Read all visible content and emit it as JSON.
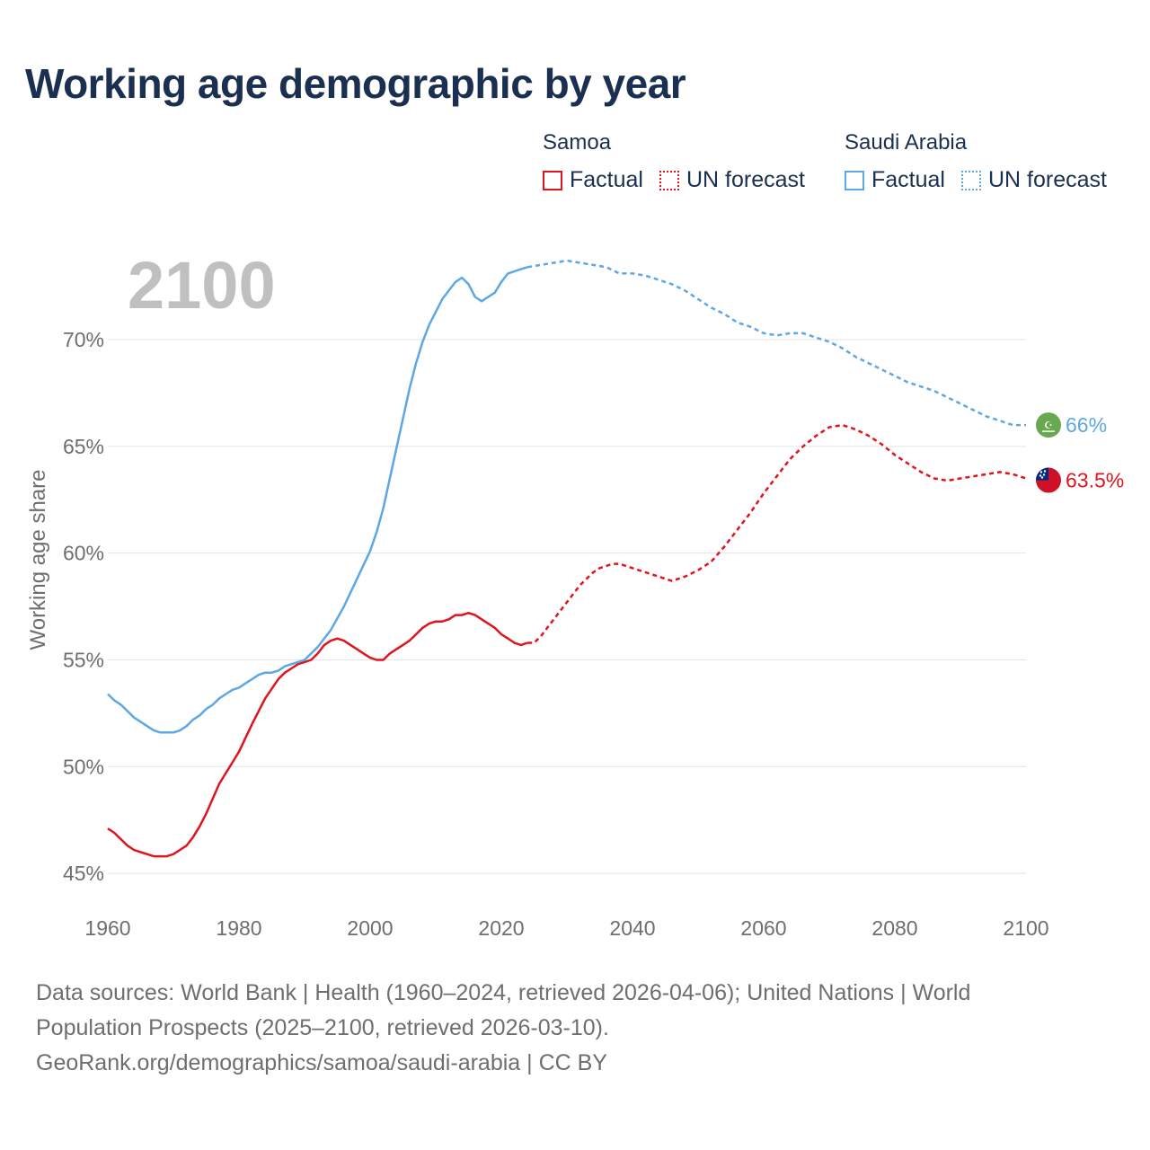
{
  "title": "Working age demographic by year",
  "legend": {
    "groups": [
      {
        "country": "Samoa",
        "color": "#e0141e",
        "factual_label": "Factual",
        "forecast_label": "UN forecast"
      },
      {
        "country": "Saudi Arabia",
        "color": "#5ea7e5",
        "factual_label": "Factual",
        "forecast_label": "UN forecast"
      }
    ]
  },
  "chart_data": {
    "type": "line",
    "year_label": "2100",
    "ylabel": "Working age share",
    "xlabel": "",
    "xlim": [
      1960,
      2100
    ],
    "ylim": [
      44.5,
      74
    ],
    "x_ticks": [
      "1960",
      "1980",
      "2000",
      "2020",
      "2040",
      "2060",
      "2080",
      "2100"
    ],
    "y_ticks": [
      "45%",
      "50%",
      "55%",
      "60%",
      "65%",
      "70%"
    ],
    "y_tick_values": [
      45,
      50,
      55,
      60,
      65,
      70
    ],
    "factual_end_year": 2024,
    "series": [
      {
        "name": "Samoa",
        "color": "#e0141e",
        "end_label": "63.5%",
        "flag": "samoa-flag",
        "x": [
          1960,
          1961,
          1962,
          1963,
          1964,
          1965,
          1966,
          1967,
          1968,
          1969,
          1970,
          1971,
          1972,
          1973,
          1974,
          1975,
          1976,
          1977,
          1978,
          1979,
          1980,
          1982,
          1984,
          1986,
          1987,
          1988,
          1989,
          1990,
          1991,
          1992,
          1993,
          1994,
          1995,
          1996,
          1997,
          1998,
          1999,
          2000,
          2001,
          2002,
          2003,
          2004,
          2005,
          2006,
          2007,
          2008,
          2009,
          2010,
          2011,
          2012,
          2013,
          2014,
          2015,
          2016,
          2017,
          2018,
          2019,
          2020,
          2021,
          2022,
          2023,
          2024,
          2025,
          2026,
          2027,
          2028,
          2029,
          2030,
          2031,
          2032,
          2033,
          2034,
          2035,
          2036,
          2037,
          2038,
          2040,
          2042,
          2044,
          2046,
          2048,
          2050,
          2052,
          2054,
          2056,
          2058,
          2060,
          2062,
          2064,
          2066,
          2068,
          2070,
          2072,
          2074,
          2076,
          2078,
          2080,
          2082,
          2084,
          2086,
          2088,
          2090,
          2092,
          2094,
          2096,
          2098,
          2100
        ],
        "y": [
          47.1,
          46.9,
          46.6,
          46.3,
          46.1,
          46.0,
          45.9,
          45.8,
          45.8,
          45.8,
          45.9,
          46.1,
          46.3,
          46.7,
          47.2,
          47.8,
          48.5,
          49.2,
          49.7,
          50.2,
          50.7,
          52.0,
          53.2,
          54.1,
          54.4,
          54.6,
          54.8,
          54.9,
          55.0,
          55.3,
          55.7,
          55.9,
          56.0,
          55.9,
          55.7,
          55.5,
          55.3,
          55.1,
          55.0,
          55.0,
          55.3,
          55.5,
          55.7,
          55.9,
          56.2,
          56.5,
          56.7,
          56.8,
          56.8,
          56.9,
          57.1,
          57.1,
          57.2,
          57.1,
          56.9,
          56.7,
          56.5,
          56.2,
          56.0,
          55.8,
          55.7,
          55.8,
          55.8,
          56.1,
          56.5,
          56.9,
          57.3,
          57.7,
          58.1,
          58.5,
          58.8,
          59.1,
          59.3,
          59.4,
          59.5,
          59.5,
          59.3,
          59.1,
          58.9,
          58.7,
          58.9,
          59.2,
          59.6,
          60.3,
          61.1,
          61.9,
          62.8,
          63.6,
          64.4,
          65.0,
          65.5,
          65.9,
          66.0,
          65.8,
          65.5,
          65.1,
          64.6,
          64.2,
          63.8,
          63.5,
          63.4,
          63.5,
          63.6,
          63.7,
          63.8,
          63.7,
          63.5
        ]
      },
      {
        "name": "Saudi Arabia",
        "color": "#5ea7e5",
        "end_label": "66%",
        "flag": "saudi-arabia-flag",
        "x": [
          1960,
          1961,
          1962,
          1963,
          1964,
          1965,
          1966,
          1967,
          1968,
          1969,
          1970,
          1971,
          1972,
          1973,
          1974,
          1975,
          1976,
          1977,
          1978,
          1979,
          1980,
          1981,
          1982,
          1983,
          1984,
          1985,
          1986,
          1987,
          1988,
          1989,
          1990,
          1992,
          1994,
          1996,
          1998,
          2000,
          2001,
          2002,
          2003,
          2004,
          2005,
          2006,
          2007,
          2008,
          2009,
          2010,
          2011,
          2012,
          2013,
          2014,
          2015,
          2016,
          2017,
          2018,
          2019,
          2020,
          2021,
          2022,
          2023,
          2024,
          2026,
          2028,
          2030,
          2032,
          2034,
          2036,
          2038,
          2040,
          2042,
          2044,
          2046,
          2048,
          2050,
          2052,
          2054,
          2056,
          2058,
          2060,
          2062,
          2064,
          2066,
          2068,
          2070,
          2072,
          2074,
          2076,
          2078,
          2080,
          2082,
          2084,
          2086,
          2088,
          2090,
          2092,
          2094,
          2096,
          2098,
          2100
        ],
        "y": [
          53.4,
          53.1,
          52.9,
          52.6,
          52.3,
          52.1,
          51.9,
          51.7,
          51.6,
          51.6,
          51.6,
          51.7,
          51.9,
          52.2,
          52.4,
          52.7,
          52.9,
          53.2,
          53.4,
          53.6,
          53.7,
          53.9,
          54.1,
          54.3,
          54.4,
          54.4,
          54.5,
          54.7,
          54.8,
          54.9,
          55.0,
          55.6,
          56.4,
          57.5,
          58.8,
          60.1,
          61.0,
          62.1,
          63.5,
          64.9,
          66.3,
          67.7,
          68.9,
          69.9,
          70.7,
          71.3,
          71.9,
          72.3,
          72.7,
          72.9,
          72.6,
          72.0,
          71.8,
          72.0,
          72.2,
          72.7,
          73.1,
          73.2,
          73.3,
          73.4,
          73.5,
          73.6,
          73.7,
          73.6,
          73.5,
          73.4,
          73.1,
          73.1,
          73.0,
          72.8,
          72.6,
          72.3,
          71.9,
          71.5,
          71.2,
          70.8,
          70.6,
          70.3,
          70.2,
          70.3,
          70.3,
          70.1,
          69.9,
          69.6,
          69.2,
          68.9,
          68.6,
          68.3,
          68.0,
          67.8,
          67.6,
          67.3,
          67.0,
          66.7,
          66.4,
          66.2,
          66.0,
          66.0
        ]
      }
    ]
  },
  "footer": {
    "line1": "Data sources: World Bank | Health (1960–2024, retrieved 2026-04-06); United Nations | World",
    "line2": "Population Prospects (2025–2100, retrieved 2026-03-10).",
    "line3": "GeoRank.org/demographics/samoa/saudi-arabia | CC BY"
  }
}
